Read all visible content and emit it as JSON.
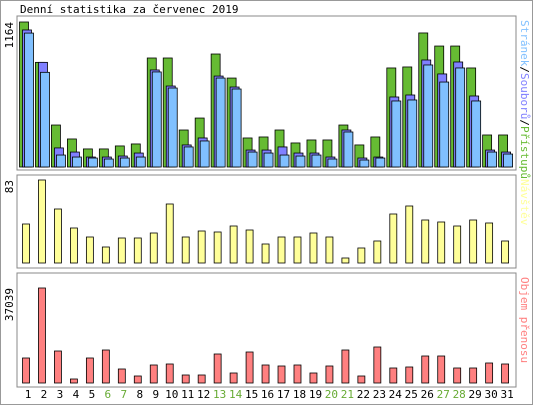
{
  "title": "Denní statistika za červenec 2019",
  "chart_data": [
    {
      "type": "bar",
      "ylim": [
        0,
        1164
      ],
      "yticks": [
        1164
      ],
      "legend_separator": "/",
      "series": [
        {
          "name": "Přístupů",
          "color": "#66bb33",
          "values": [
            1164,
            840,
            337,
            225,
            145,
            145,
            169,
            185,
            875,
            875,
            297,
            393,
            907,
            714,
            233,
            241,
            297,
            193,
            217,
            217,
            337,
            177,
            241,
            795,
            803,
            1076,
            971,
            971,
            795,
            257,
            257
          ]
        },
        {
          "name": "Souborů",
          "color": "#8080ff",
          "values": [
            1100,
            840,
            153,
            120,
            80,
            80,
            88,
            112,
            779,
            650,
            177,
            233,
            730,
            642,
            136,
            136,
            161,
            112,
            112,
            80,
            297,
            72,
            80,
            562,
            578,
            859,
            747,
            843,
            570,
            136,
            120
          ]
        },
        {
          "name": "Stránek",
          "color": "#80c0ff",
          "values": [
            1075,
            760,
            96,
            80,
            72,
            64,
            72,
            80,
            763,
            634,
            161,
            209,
            714,
            626,
            120,
            112,
            96,
            88,
            96,
            64,
            281,
            56,
            72,
            530,
            538,
            819,
            682,
            795,
            530,
            120,
            104
          ]
        }
      ]
    },
    {
      "type": "bar",
      "ylim": [
        0,
        83
      ],
      "yticks": [
        83
      ],
      "series": [
        {
          "name": "Návštěv",
          "color": "#ffff99",
          "values": [
            39,
            83,
            54,
            35,
            26,
            16,
            25,
            25,
            30,
            59,
            26,
            32,
            31,
            37,
            33,
            19,
            26,
            26,
            30,
            26,
            5,
            15,
            22,
            49,
            57,
            43,
            41,
            37,
            43,
            40,
            22
          ]
        }
      ]
    },
    {
      "type": "bar",
      "ylim": [
        0,
        37039
      ],
      "yticks": [
        37039
      ],
      "series": [
        {
          "name": "Objem přenosu",
          "color": "#ff8080",
          "values": [
            9747,
            37039,
            12475,
            1560,
            9747,
            12865,
            5459,
            2729,
            7018,
            7408,
            3119,
            3119,
            11306,
            3899,
            12085,
            7018,
            6628,
            7018,
            3899,
            6628,
            12865,
            2729,
            14035,
            5848,
            6238,
            10526,
            10526,
            5848,
            5848,
            7797,
            7408
          ]
        }
      ],
      "categories": [
        "1",
        "2",
        "3",
        "4",
        "5",
        "6",
        "7",
        "8",
        "9",
        "10",
        "11",
        "12",
        "13",
        "14",
        "15",
        "16",
        "17",
        "18",
        "19",
        "20",
        "21",
        "22",
        "23",
        "24",
        "25",
        "26",
        "27",
        "28",
        "29",
        "30",
        "31"
      ],
      "category_colors": [
        "#000000",
        "#000000",
        "#000000",
        "#000000",
        "#000000",
        "#66aa33",
        "#66aa33",
        "#000000",
        "#000000",
        "#000000",
        "#000000",
        "#000000",
        "#66aa33",
        "#66aa33",
        "#000000",
        "#000000",
        "#000000",
        "#000000",
        "#000000",
        "#66aa33",
        "#66aa33",
        "#000000",
        "#000000",
        "#000000",
        "#000000",
        "#000000",
        "#66aa33",
        "#66aa33",
        "#000000",
        "#000000",
        "#000000"
      ]
    }
  ]
}
